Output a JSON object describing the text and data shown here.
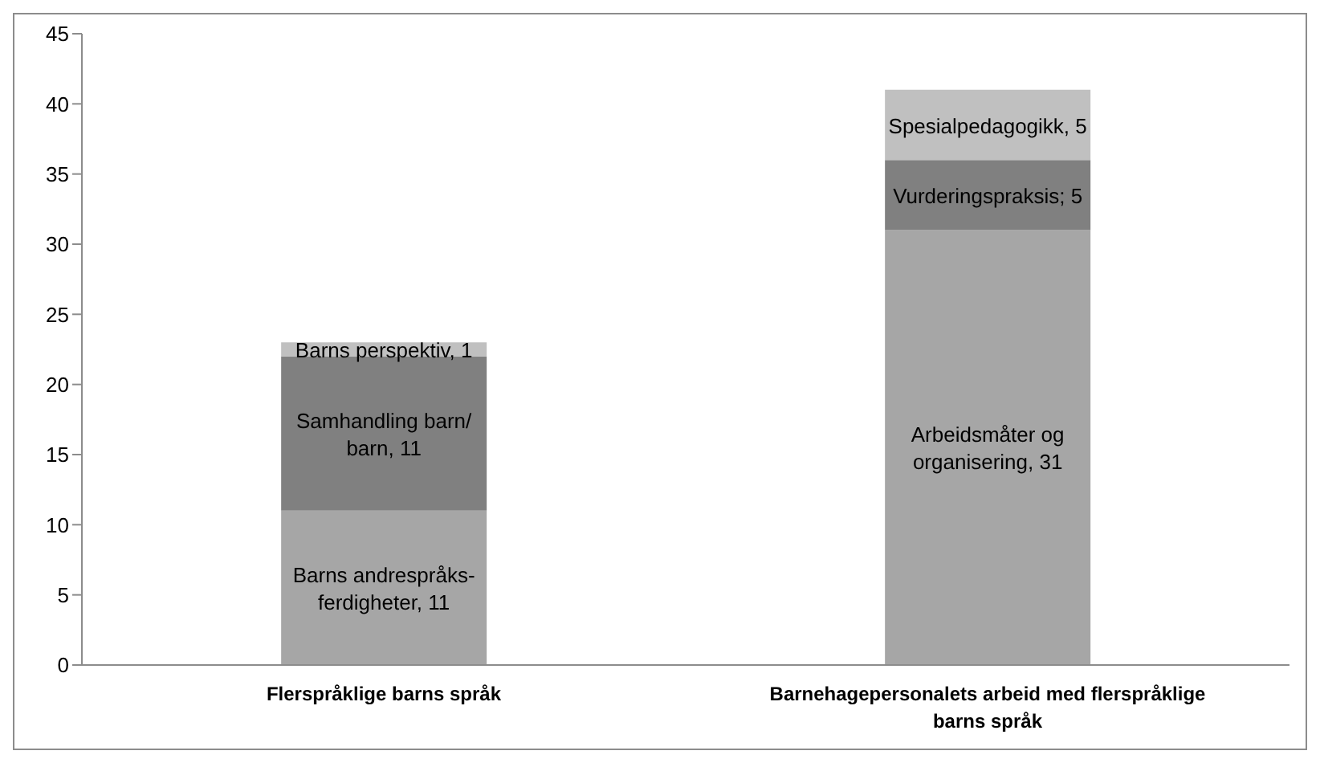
{
  "chart_data": {
    "type": "bar",
    "stacked": true,
    "categories": [
      "Flerspråklige barns språk",
      "Barnehagepersonalets arbeid med flerspråklige barns språk"
    ],
    "series": [
      {
        "color": "#a6a6a6",
        "values": [
          11,
          31
        ],
        "value_labels": [
          "Barns andrespråks-ferdigheter, 11",
          "Arbeidsmåter og organisering, 31"
        ]
      },
      {
        "color": "#808080",
        "values": [
          11,
          5
        ],
        "value_labels": [
          "Samhandling barn/barn, 11",
          "Vurderingspraksis; 5"
        ]
      },
      {
        "color": "#c0c0c0",
        "values": [
          1,
          5
        ],
        "value_labels": [
          "Barns perspektiv, 1",
          "Spesialpedagogikk, 5"
        ]
      }
    ],
    "ylim": [
      0,
      45
    ],
    "yticks": [
      0,
      5,
      10,
      15,
      20,
      25,
      30,
      35,
      40,
      45
    ],
    "grid": false,
    "legend": false
  }
}
